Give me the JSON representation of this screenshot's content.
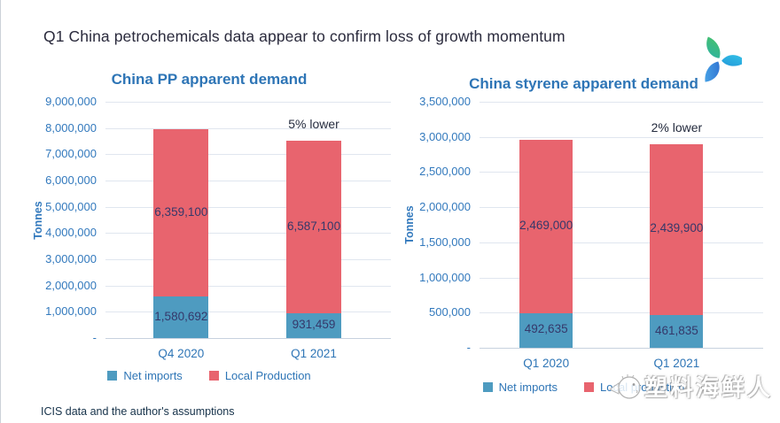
{
  "page": {
    "title": "Q1 China petrochemicals data appear to confirm loss of growth momentum",
    "footer": "ICIS data and the author's assumptions",
    "watermark_text": "塑料海鲜人"
  },
  "colors": {
    "net_imports": "#4e9bc0",
    "local_production": "#e8646e",
    "chart_title": "#2e75b6",
    "axis_text": "#3279bd",
    "data_label": "#35386a",
    "annotation": "#242b3e",
    "gridline": "#e0e6ef"
  },
  "chart_data": [
    {
      "type": "bar",
      "stacked": true,
      "title": "China PP apparent demand",
      "ylabel": "Tonnes",
      "categories": [
        "Q4 2020",
        "Q1 2021"
      ],
      "series": [
        {
          "name": "Net imports",
          "color": "#4e9bc0",
          "values": [
            1580692,
            931459
          ]
        },
        {
          "name": "Local Production",
          "color": "#e8646e",
          "values": [
            6359100,
            6587100
          ]
        }
      ],
      "annotation": "5% lower",
      "annotation_on_category": "Q1 2021",
      "ylim": [
        0,
        9000000
      ],
      "ytick_step": 1000000,
      "ytick_labels": [
        "9,000,000",
        "8,000,000",
        "7,000,000",
        "6,000,000",
        "5,000,000",
        "4,000,000",
        "3,000,000",
        "2,000,000",
        "1,000,000",
        "-"
      ],
      "grid": true,
      "legend_position": "bottom"
    },
    {
      "type": "bar",
      "stacked": true,
      "title": "China styrene apparent demand",
      "ylabel": "Tonnes",
      "categories": [
        "Q1 2020",
        "Q1 2021"
      ],
      "series": [
        {
          "name": "Net imports",
          "color": "#4e9bc0",
          "values": [
            492635,
            461835
          ]
        },
        {
          "name": "Local production",
          "color": "#e8646e",
          "values": [
            2469000,
            2439900
          ]
        }
      ],
      "annotation": "2% lower",
      "annotation_on_category": "Q1 2021",
      "ylim": [
        0,
        3500000
      ],
      "ytick_step": 500000,
      "ytick_labels": [
        "3,500,000",
        "3,000,000",
        "2,500,000",
        "2,000,000",
        "1,500,000",
        "1,000,000",
        "500,000",
        "-"
      ],
      "grid": true,
      "legend_position": "bottom"
    }
  ]
}
